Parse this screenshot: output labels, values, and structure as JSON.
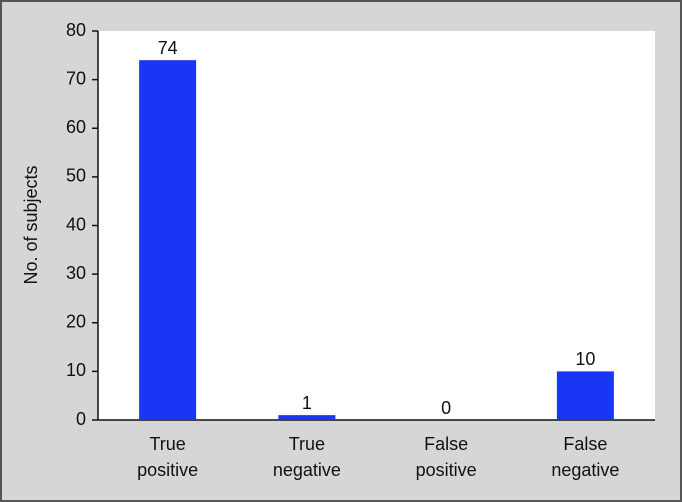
{
  "chart_data": {
    "type": "bar",
    "y_label": "No. of subjects",
    "categories": [
      [
        "True",
        "positive"
      ],
      [
        "True",
        "negative"
      ],
      [
        "False",
        "positive"
      ],
      [
        "False",
        "negative"
      ]
    ],
    "values": [
      74,
      1,
      0,
      10
    ],
    "color": "#1a35f5",
    "ylim": [
      0,
      80
    ],
    "yticks": [
      0,
      10,
      20,
      30,
      40,
      50,
      60,
      70,
      80
    ]
  }
}
